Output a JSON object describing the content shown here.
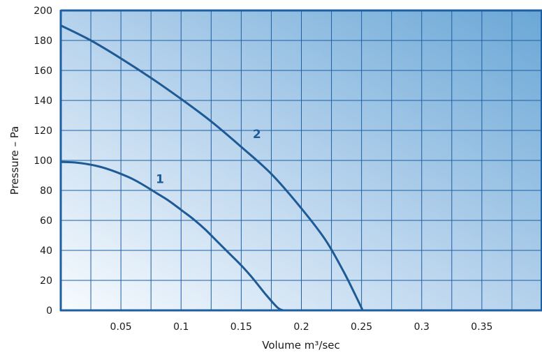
{
  "chart_data": {
    "type": "line",
    "title": "",
    "xlabel": "Volume m³/sec",
    "ylabel": "Pressure – Pa",
    "xlim": [
      0,
      0.4
    ],
    "ylim": [
      0,
      200
    ],
    "grid": true,
    "x_ticks": [
      "0.05",
      "0.1",
      "0.15",
      "0.2",
      "0.25",
      "0.3",
      "0.35"
    ],
    "y_ticks": [
      "0",
      "20",
      "40",
      "60",
      "80",
      "100",
      "120",
      "140",
      "160",
      "180",
      "200"
    ],
    "series": [
      {
        "name": "1",
        "x": [
          0,
          0.01,
          0.02,
          0.03,
          0.04,
          0.05,
          0.06,
          0.07,
          0.08,
          0.09,
          0.1,
          0.11,
          0.12,
          0.13,
          0.14,
          0.15,
          0.16,
          0.17,
          0.18,
          0.185
        ],
        "y": [
          99,
          98.7,
          97.8,
          96.3,
          94,
          91,
          87.5,
          83,
          78,
          73,
          67,
          61,
          54,
          46,
          38,
          30,
          21,
          11,
          2,
          0
        ]
      },
      {
        "name": "2",
        "x": [
          0,
          0.025,
          0.05,
          0.075,
          0.1,
          0.125,
          0.15,
          0.175,
          0.2,
          0.22,
          0.235,
          0.245,
          0.251
        ],
        "y": [
          190,
          180,
          168,
          155,
          141,
          126,
          109,
          91,
          68,
          47,
          26,
          10,
          0
        ]
      }
    ],
    "colors": {
      "curve": "#1d5a96",
      "label": "#1e5b99",
      "grid": "#1d5fa3",
      "axis": "#1d5fa3",
      "fill_light": "#f7fbfe",
      "fill_dark": "#6aa7d6"
    }
  }
}
